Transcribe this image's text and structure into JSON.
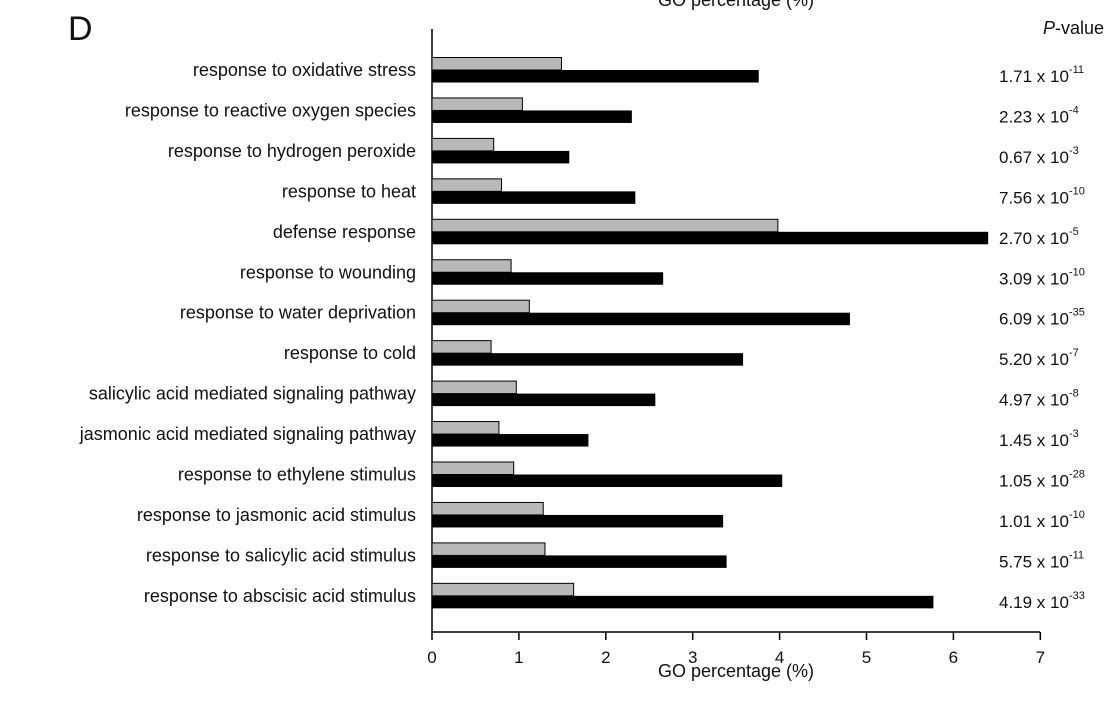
{
  "panel_label": "D",
  "colors": {
    "background_bar": "#b8b8b8",
    "target_bar": "#000000",
    "axis": "#000000"
  },
  "chart_data": {
    "type": "bar",
    "orientation": "horizontal",
    "xlabel": "GO percentage (%)",
    "top_label": "GO percentage (%)",
    "xlim": [
      0,
      7
    ],
    "xticks": [
      "0",
      "1",
      "2",
      "3",
      "4",
      "5",
      "6",
      "7"
    ],
    "pvalue_header_italic": "P",
    "pvalue_header_rest": "-value",
    "categories": [
      "response to oxidative stress",
      "response to reactive oxygen species",
      "response to hydrogen peroxide",
      "response to heat",
      "defense response",
      "response to wounding",
      "response to water deprivation",
      "response to cold",
      "salicylic acid mediated signaling pathway",
      "jasmonic acid mediated signaling pathway",
      "response to ethylene stimulus",
      "response to jasmonic acid stimulus",
      "response to salicylic acid stimulus",
      "response to abscisic acid stimulus"
    ],
    "series": [
      {
        "color": "#b8b8b8",
        "values": [
          1.49,
          1.04,
          0.71,
          0.8,
          3.98,
          0.91,
          1.12,
          0.68,
          0.97,
          0.77,
          0.94,
          1.28,
          1.3,
          1.63
        ]
      },
      {
        "color": "#000000",
        "values": [
          3.76,
          2.3,
          1.58,
          2.34,
          6.4,
          2.66,
          4.81,
          3.58,
          2.57,
          1.8,
          4.03,
          3.35,
          3.39,
          5.77
        ]
      }
    ],
    "pvalues": [
      {
        "mantissa": "1.71 x 10",
        "exponent": "-11"
      },
      {
        "mantissa": "2.23 x 10",
        "exponent": "-4"
      },
      {
        "mantissa": "0.67 x 10",
        "exponent": "-3"
      },
      {
        "mantissa": "7.56 x 10",
        "exponent": "-10"
      },
      {
        "mantissa": "2.70 x 10",
        "exponent": "-5"
      },
      {
        "mantissa": "3.09 x 10",
        "exponent": "-10"
      },
      {
        "mantissa": "6.09 x 10",
        "exponent": "-35"
      },
      {
        "mantissa": "5.20 x 10",
        "exponent": "-7"
      },
      {
        "mantissa": "4.97 x 10",
        "exponent": "-8"
      },
      {
        "mantissa": "1.45 x 10",
        "exponent": "-3"
      },
      {
        "mantissa": "1.05 x 10",
        "exponent": "-28"
      },
      {
        "mantissa": "1.01 x 10",
        "exponent": "-10"
      },
      {
        "mantissa": "5.75 x 10",
        "exponent": "-11"
      },
      {
        "mantissa": "4.19 x 10",
        "exponent": "-33"
      }
    ]
  }
}
